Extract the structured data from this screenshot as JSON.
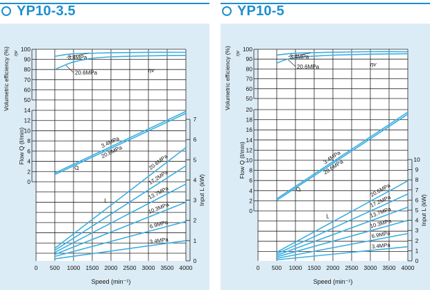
{
  "colors": {
    "accent": "#1c8fd0",
    "line": "#3aaee0",
    "panel": "#dcecf6"
  },
  "chart_data": [
    {
      "type": "line",
      "title": "YP10-3.5",
      "xlabel": "Speed (min⁻¹)",
      "x_ticks": [
        "0",
        "500",
        "1000",
        "1500",
        "2000",
        "2500",
        "3000",
        "3500",
        "4000"
      ],
      "xlim": [
        0,
        4000
      ],
      "eff_axis": {
        "label": "Volumetric efficiency (%)",
        "ticks": [
          "100",
          "90",
          "80",
          "70",
          "60",
          "50"
        ],
        "range": [
          50,
          100
        ]
      },
      "flow_axis": {
        "label": "Flow Q (ℓ/min)",
        "ticks": [
          "14",
          "12",
          "10",
          "8",
          "6",
          "4",
          "2",
          "0"
        ],
        "range": [
          0,
          14
        ]
      },
      "power_axis": {
        "label": "Input L (kW)",
        "ticks": [
          "7",
          "6",
          "5",
          "4",
          "3",
          "2",
          "1",
          "0"
        ],
        "range": [
          0,
          7
        ]
      },
      "eta_label": "ηv",
      "q_label": "Q",
      "l_label": "L",
      "efficiency": [
        {
          "name": "3.4MPa",
          "x": [
            500,
            1000,
            2000,
            3000,
            4000
          ],
          "y": [
            93,
            95.5,
            96.5,
            97,
            97
          ]
        },
        {
          "name": "20.6MPa",
          "x": [
            500,
            750,
            1000,
            1500,
            2000,
            3000,
            4000
          ],
          "y": [
            80,
            84,
            87.5,
            91,
            92.5,
            93.5,
            94
          ]
        }
      ],
      "flow": [
        {
          "name": "3.4MPa",
          "x": [
            500,
            4000
          ],
          "y": [
            1.7,
            13.8
          ]
        },
        {
          "name": "20.6MPa",
          "x": [
            500,
            4000
          ],
          "y": [
            1.4,
            13.4
          ]
        }
      ],
      "power": [
        {
          "name": "20.6MPa",
          "x": [
            500,
            4000
          ],
          "y": [
            0.62,
            5.6
          ]
        },
        {
          "name": "17.2MPa",
          "x": [
            500,
            4000
          ],
          "y": [
            0.52,
            4.7
          ]
        },
        {
          "name": "13.7MPa",
          "x": [
            500,
            4000
          ],
          "y": [
            0.42,
            3.8
          ]
        },
        {
          "name": "10.3MPa",
          "x": [
            500,
            4000
          ],
          "y": [
            0.32,
            2.9
          ]
        },
        {
          "name": "6.9MPa",
          "x": [
            500,
            4000
          ],
          "y": [
            0.22,
            1.95
          ]
        },
        {
          "name": "3.4MPa",
          "x": [
            500,
            4000
          ],
          "y": [
            0.1,
            1.0
          ]
        }
      ]
    },
    {
      "type": "line",
      "title": "YP10-5",
      "xlabel": "Speed (min⁻¹)",
      "x_ticks": [
        "0",
        "500",
        "1000",
        "1500",
        "2000",
        "2500",
        "3000",
        "3500",
        "4000"
      ],
      "xlim": [
        0,
        4000
      ],
      "eff_axis": {
        "label": "Volumetric efficiency (%)",
        "ticks": [
          "100",
          "90",
          "80",
          "70",
          "60",
          "50"
        ],
        "range": [
          50,
          100
        ]
      },
      "flow_axis": {
        "label": "Flow Q (ℓ/min)",
        "ticks": [
          "20",
          "18",
          "16",
          "14",
          "12",
          "10",
          "8",
          "6",
          "4",
          "2",
          "0"
        ],
        "range": [
          0,
          20
        ]
      },
      "power_axis": {
        "label": "Input L (kW)",
        "ticks": [
          "10",
          "9",
          "8",
          "7",
          "6",
          "5",
          "4",
          "3",
          "2",
          "1",
          "0"
        ],
        "range": [
          0,
          10
        ]
      },
      "eta_label": "ηv",
      "q_label": "Q",
      "l_label": "L",
      "efficiency": [
        {
          "name": "3.4MPa",
          "x": [
            500,
            1000,
            2000,
            3000,
            4000
          ],
          "y": [
            94,
            96,
            97,
            97.5,
            97.5
          ]
        },
        {
          "name": "20.6MPa",
          "x": [
            500,
            750,
            1000,
            1500,
            2000,
            3000,
            4000
          ],
          "y": [
            86,
            89.5,
            91.5,
            93,
            94,
            95,
            95.5
          ]
        }
      ],
      "flow": [
        {
          "name": "3.4MPa",
          "x": [
            500,
            4000
          ],
          "y": [
            2.4,
            19.5
          ]
        },
        {
          "name": "20.6MPa",
          "x": [
            500,
            4000
          ],
          "y": [
            2.1,
            19.1
          ]
        }
      ],
      "power": [
        {
          "name": "20.6MPa",
          "x": [
            500,
            4000
          ],
          "y": [
            0.85,
            7.9
          ]
        },
        {
          "name": "17.2MPa",
          "x": [
            500,
            4000
          ],
          "y": [
            0.7,
            6.6
          ]
        },
        {
          "name": "13.7MPa",
          "x": [
            500,
            4000
          ],
          "y": [
            0.55,
            5.3
          ]
        },
        {
          "name": "10.3MPa",
          "x": [
            500,
            4000
          ],
          "y": [
            0.4,
            4.0
          ]
        },
        {
          "name": "6.9MPa",
          "x": [
            500,
            4000
          ],
          "y": [
            0.25,
            2.7
          ]
        },
        {
          "name": "3.4MPa",
          "x": [
            500,
            4000
          ],
          "y": [
            0.1,
            1.4
          ]
        }
      ]
    }
  ]
}
